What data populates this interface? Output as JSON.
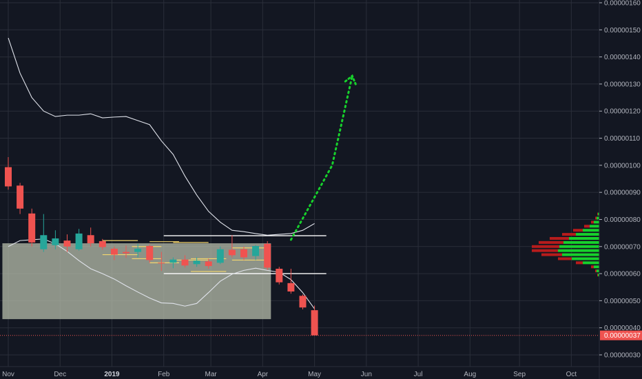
{
  "chart_data": {
    "type": "candlestick",
    "y_axis": {
      "ticks": [
        "0.00000030",
        "0.00000040",
        "0.00000050",
        "0.00000060",
        "0.00000070",
        "0.00000080",
        "0.00000090",
        "0.00000100",
        "0.00000110",
        "0.00000120",
        "0.00000130",
        "0.00000140",
        "0.00000150",
        "0.00000160"
      ],
      "range": [
        2.75e-07,
        1.62e-06
      ]
    },
    "x_axis": {
      "ticks": [
        {
          "label": "Nov",
          "week": 0
        },
        {
          "label": "Dec",
          "week": 4.4
        },
        {
          "label": "2019",
          "week": 8.8,
          "bold": true
        },
        {
          "label": "Feb",
          "week": 13.2
        },
        {
          "label": "Mar",
          "week": 17.2
        },
        {
          "label": "Apr",
          "week": 21.6
        },
        {
          "label": "May",
          "week": 26
        },
        {
          "label": "Jun",
          "week": 30.4
        },
        {
          "label": "Jul",
          "week": 34.8
        },
        {
          "label": "Aug",
          "week": 39.2
        },
        {
          "label": "Sep",
          "week": 43.4
        },
        {
          "label": "Oct",
          "week": 47.8
        }
      ]
    },
    "current_price": {
      "label": "0.00000037",
      "value": 3.72e-07,
      "color": "#ef5350"
    },
    "candles": [
      {
        "o": 9.93e-07,
        "h": 1.03e-06,
        "l": 9.1e-07,
        "c": 9.22e-07
      },
      {
        "o": 9.25e-07,
        "h": 9.35e-07,
        "l": 8.2e-07,
        "c": 8.4e-07
      },
      {
        "o": 8.22e-07,
        "h": 8.4e-07,
        "l": 7e-07,
        "c": 7.15e-07
      },
      {
        "o": 6.9e-07,
        "h": 8.2e-07,
        "l": 6.8e-07,
        "c": 7.42e-07
      },
      {
        "o": 7.05e-07,
        "h": 7.6e-07,
        "l": 6.9e-07,
        "c": 7.3e-07
      },
      {
        "o": 7.22e-07,
        "h": 7.45e-07,
        "l": 6.8e-07,
        "c": 7e-07
      },
      {
        "o": 6.9e-07,
        "h": 7.65e-07,
        "l": 6.85e-07,
        "c": 7.48e-07
      },
      {
        "o": 7.42e-07,
        "h": 7.7e-07,
        "l": 7e-07,
        "c": 7.12e-07
      },
      {
        "o": 7.2e-07,
        "h": 7.28e-07,
        "l": 6.88e-07,
        "c": 6.98e-07
      },
      {
        "o": 6.92e-07,
        "h": 7e-07,
        "l": 6.5e-07,
        "c": 6.7e-07
      },
      {
        "o": 6.8e-07,
        "h": 7.04e-07,
        "l": 6.58e-07,
        "c": 6.75e-07
      },
      {
        "o": 6.8e-07,
        "h": 7.1e-07,
        "l": 6.6e-07,
        "c": 6.92e-07
      },
      {
        "o": 7.02e-07,
        "h": 7.08e-07,
        "l": 6.4e-07,
        "c": 6.5e-07
      },
      {
        "o": 6.4e-07,
        "h": 6.8e-07,
        "l": 6.1e-07,
        "c": 6.38e-07
      },
      {
        "o": 6.4e-07,
        "h": 6.6e-07,
        "l": 6.2e-07,
        "c": 6.52e-07
      },
      {
        "o": 6.52e-07,
        "h": 6.68e-07,
        "l": 6.22e-07,
        "c": 6.3e-07
      },
      {
        "o": 6.35e-07,
        "h": 6.6e-07,
        "l": 6.25e-07,
        "c": 6.48e-07
      },
      {
        "o": 6.45e-07,
        "h": 6.55e-07,
        "l": 6.18e-07,
        "c": 6.28e-07
      },
      {
        "o": 6.4e-07,
        "h": 7e-07,
        "l": 6.35e-07,
        "c": 6.9e-07
      },
      {
        "o": 6.88e-07,
        "h": 7.42e-07,
        "l": 6.6e-07,
        "c": 6.68e-07
      },
      {
        "o": 6.9e-07,
        "h": 7e-07,
        "l": 6.5e-07,
        "c": 6.6e-07
      },
      {
        "o": 6.65e-07,
        "h": 7.05e-07,
        "l": 6.5e-07,
        "c": 7.02e-07
      },
      {
        "o": 7.1e-07,
        "h": 7.2e-07,
        "l": 6.14e-07,
        "c": 6.22e-07
      },
      {
        "o": 6.18e-07,
        "h": 6.25e-07,
        "l": 5.6e-07,
        "c": 5.68e-07
      },
      {
        "o": 5.65e-07,
        "h": 6.18e-07,
        "l": 5.26e-07,
        "c": 5.34e-07
      },
      {
        "o": 5.18e-07,
        "h": 5.23e-07,
        "l": 4.68e-07,
        "c": 4.75e-07
      },
      {
        "o": 4.65e-07,
        "h": 4.82e-07,
        "l": 3.72e-07,
        "c": 3.72e-07
      }
    ],
    "moving_average_upper": [
      1.47e-06,
      1.34e-06,
      1.25e-06,
      1.2e-06,
      1.18e-06,
      1.185e-06,
      1.185e-06,
      1.19e-06,
      1.175e-06,
      1.178e-06,
      1.18e-06,
      1.165e-06,
      1.15e-06,
      1.09e-06,
      1.04e-06,
      9.6e-07,
      8.9e-07,
      8.3e-07,
      7.9e-07,
      7.6e-07,
      7.55e-07,
      7.48e-07,
      7.42e-07,
      7.45e-07,
      7.48e-07,
      7.6e-07,
      7.85e-07
    ],
    "moving_average_lower": [
      7e-07,
      7.22e-07,
      7.25e-07,
      7.28e-07,
      7.1e-07,
      6.82e-07,
      6.48e-07,
      6.18e-07,
      6e-07,
      5.8e-07,
      5.55e-07,
      5.32e-07,
      5.1e-07,
      4.92e-07,
      4.9e-07,
      4.8e-07,
      4.9e-07,
      5.3e-07,
      5.72e-07,
      5.98e-07,
      6.12e-07,
      6.2e-07,
      6.12e-07,
      6.05e-07,
      5.78e-07,
      5.3e-07,
      4.7e-07
    ],
    "range_zone": {
      "from_week": -0.5,
      "to_week": 22.3,
      "top": 7.12e-07,
      "bottom": 4.32e-07,
      "color": "#b7bdab"
    },
    "horizontal_lines": [
      {
        "from_week": 13.2,
        "to_week": 27,
        "value": 7.4e-07,
        "color": "#ffffff"
      },
      {
        "from_week": 13.2,
        "to_week": 27,
        "value": 6e-07,
        "color": "#ffffff"
      }
    ],
    "yellow_boxes": [
      {
        "from_week": 8,
        "to_week": 11,
        "top": 7.22e-07,
        "bottom": 6.7e-07
      },
      {
        "from_week": 10.5,
        "to_week": 13,
        "top": 7e-07,
        "bottom": 6.55e-07
      },
      {
        "from_week": 12,
        "to_week": 14.5,
        "top": 7.18e-07,
        "bottom": 6.4e-07
      },
      {
        "from_week": 14,
        "to_week": 17,
        "top": 7.15e-07,
        "bottom": 6.5e-07
      },
      {
        "from_week": 15.5,
        "to_week": 18.5,
        "top": 6.55e-07,
        "bottom": 6.08e-07
      },
      {
        "from_week": 19,
        "to_week": 22,
        "top": 6.95e-07,
        "bottom": 6.5e-07
      }
    ],
    "projection": {
      "color": "#17d12c",
      "points": [
        [
          24,
          7.25e-07
        ],
        [
          27.5,
          1e-06
        ],
        [
          29.2,
          1.33e-06
        ]
      ],
      "arrow_tip": [
        29.2,
        1.33e-06
      ]
    },
    "volume_profile": [
      {
        "value": 8.2e-07,
        "up": 2,
        "down": 1
      },
      {
        "value": 8.05e-07,
        "up": 4,
        "down": 2
      },
      {
        "value": 7.9e-07,
        "up": 8,
        "down": 4
      },
      {
        "value": 7.75e-07,
        "up": 14,
        "down": 8
      },
      {
        "value": 7.6e-07,
        "up": 24,
        "down": 14
      },
      {
        "value": 7.45e-07,
        "up": 34,
        "down": 20
      },
      {
        "value": 7.3e-07,
        "up": 44,
        "down": 28
      },
      {
        "value": 7.15e-07,
        "up": 52,
        "down": 36
      },
      {
        "value": 7e-07,
        "up": 58,
        "down": 40
      },
      {
        "value": 6.85e-07,
        "up": 60,
        "down": 38
      },
      {
        "value": 6.7e-07,
        "up": 54,
        "down": 30
      },
      {
        "value": 6.55e-07,
        "up": 40,
        "down": 20
      },
      {
        "value": 6.4e-07,
        "up": 24,
        "down": 10
      },
      {
        "value": 6.25e-07,
        "up": 8,
        "down": 4
      },
      {
        "value": 6.1e-07,
        "up": 4,
        "down": 2
      },
      {
        "value": 5.95e-07,
        "up": 2,
        "down": 1
      }
    ],
    "colors": {
      "up": "#26a69a",
      "down": "#ef5350",
      "ma": "#e0e3eb",
      "grid": "#2a2e39",
      "background": "#131722",
      "vp_up": "#17d12c",
      "vp_down": "#b71c1c"
    }
  }
}
